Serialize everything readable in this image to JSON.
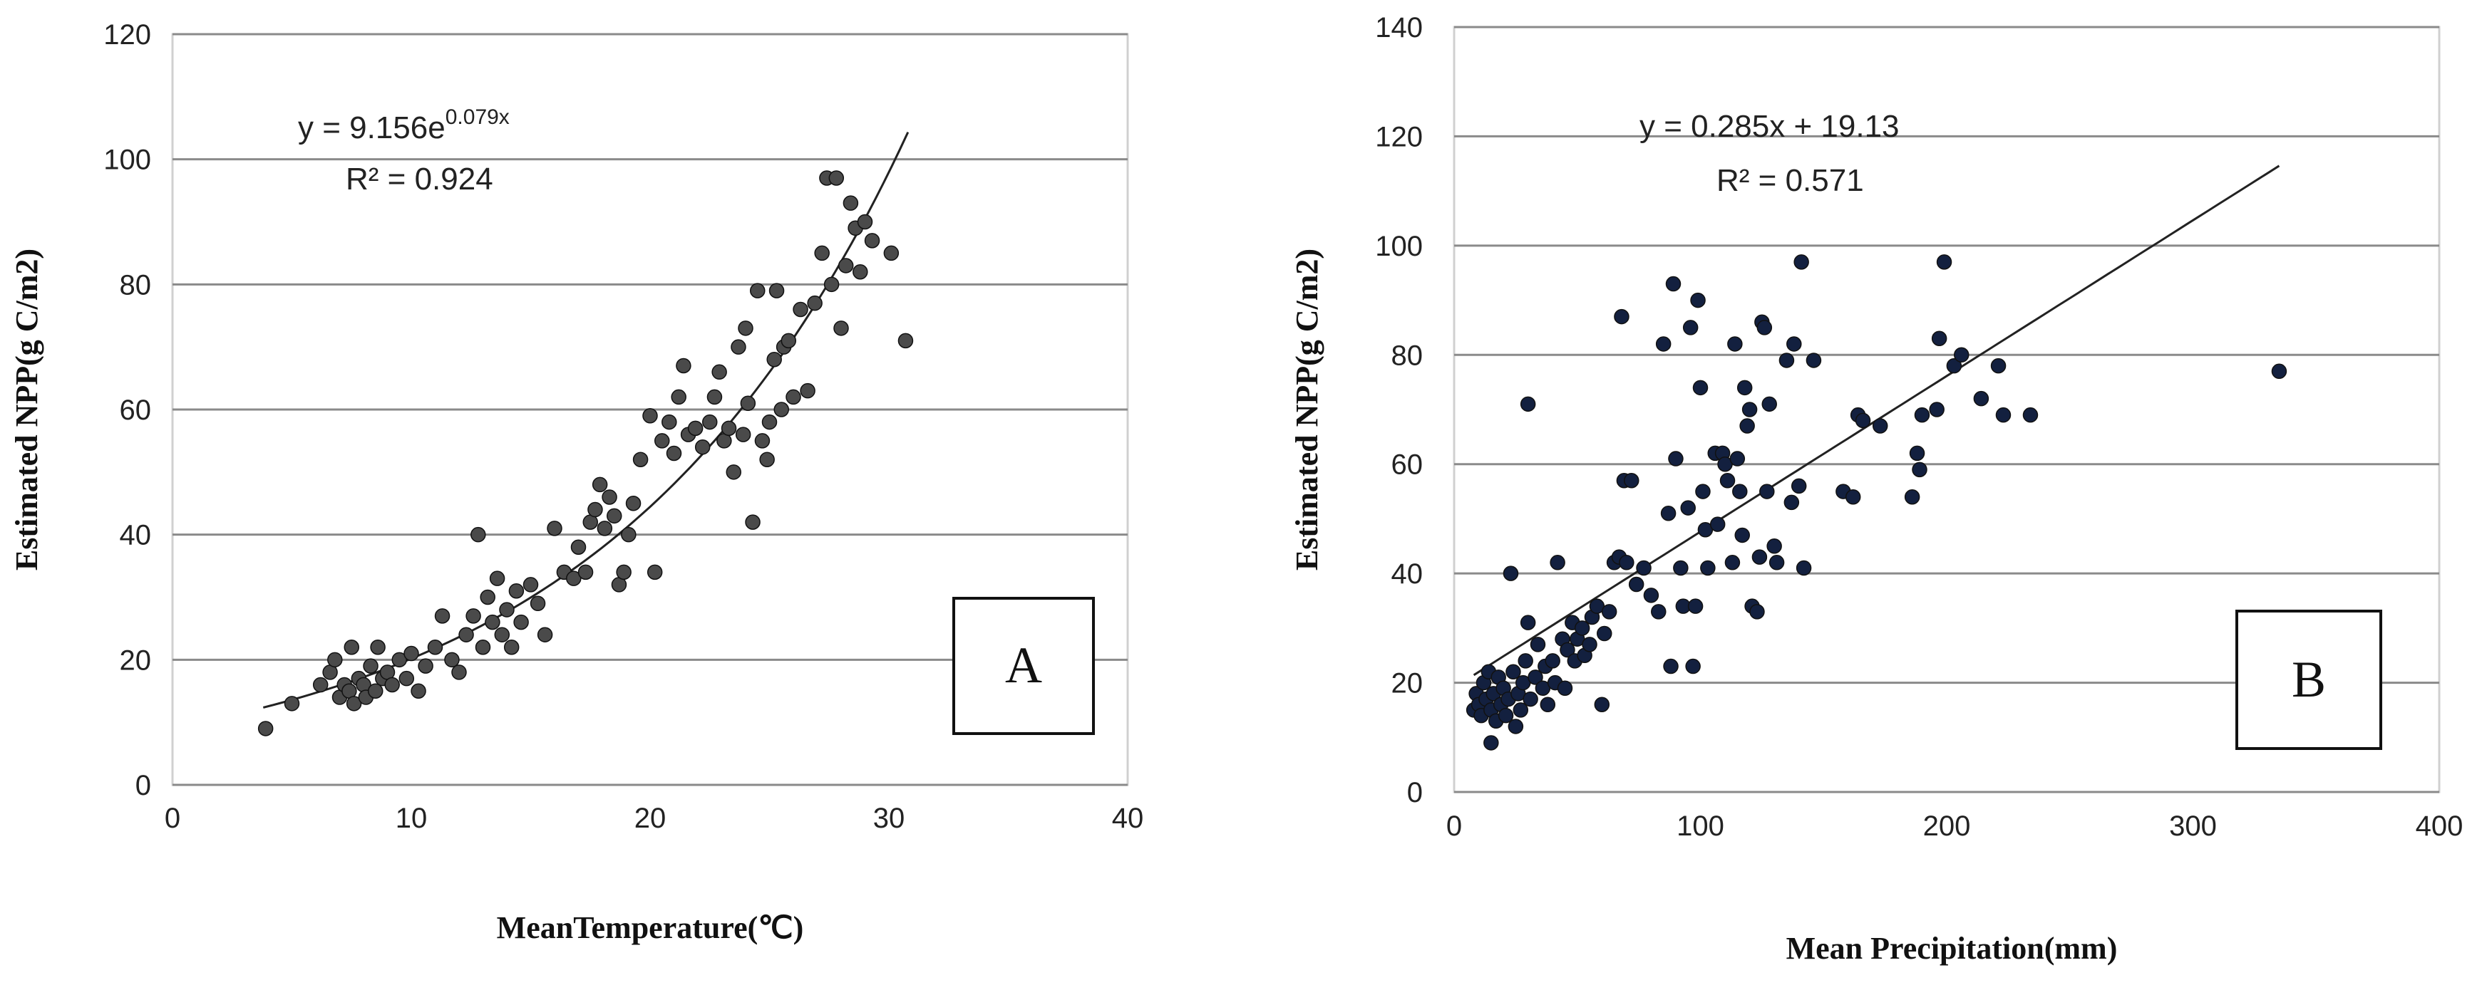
{
  "chart_data": [
    {
      "type": "scatter",
      "panel_label": "A",
      "xlabel": "MeanTemperature(℃)",
      "ylabel": "Estimated NPP(g C/m2)",
      "xlim": [
        0,
        40
      ],
      "ylim": [
        0,
        120
      ],
      "xticks": [
        0,
        10,
        20,
        30,
        40
      ],
      "yticks": [
        0,
        20,
        40,
        60,
        80,
        100,
        120
      ],
      "grid": "horizontal",
      "equation": "y = 9.156e",
      "equation_exponent": "0.079x",
      "r_squared": "R² = 0.924",
      "fit": {
        "kind": "exponential",
        "a": 9.156,
        "b": 0.079,
        "x_range": [
          3.8,
          30.8
        ]
      },
      "points": [
        [
          3.9,
          9
        ],
        [
          5,
          13
        ],
        [
          6.2,
          16
        ],
        [
          6.6,
          18
        ],
        [
          6.8,
          20
        ],
        [
          7,
          14
        ],
        [
          7.2,
          16
        ],
        [
          7.4,
          15
        ],
        [
          7.5,
          22
        ],
        [
          7.6,
          13
        ],
        [
          7.8,
          17
        ],
        [
          8,
          16
        ],
        [
          8.1,
          14
        ],
        [
          8.3,
          19
        ],
        [
          8.5,
          15
        ],
        [
          8.6,
          22
        ],
        [
          8.8,
          17
        ],
        [
          9,
          18
        ],
        [
          9.2,
          16
        ],
        [
          9.5,
          20
        ],
        [
          9.8,
          17
        ],
        [
          10,
          21
        ],
        [
          10.3,
          15
        ],
        [
          10.6,
          19
        ],
        [
          11,
          22
        ],
        [
          11.3,
          27
        ],
        [
          11.7,
          20
        ],
        [
          12,
          18
        ],
        [
          12.3,
          24
        ],
        [
          12.6,
          27
        ],
        [
          12.8,
          40
        ],
        [
          13,
          22
        ],
        [
          13.2,
          30
        ],
        [
          13.4,
          26
        ],
        [
          13.6,
          33
        ],
        [
          13.8,
          24
        ],
        [
          14,
          28
        ],
        [
          14.2,
          22
        ],
        [
          14.4,
          31
        ],
        [
          14.6,
          26
        ],
        [
          15,
          32
        ],
        [
          15.3,
          29
        ],
        [
          15.6,
          24
        ],
        [
          16,
          41
        ],
        [
          16.4,
          34
        ],
        [
          16.8,
          33
        ],
        [
          17,
          38
        ],
        [
          17.3,
          34
        ],
        [
          17.5,
          42
        ],
        [
          17.7,
          44
        ],
        [
          17.9,
          48
        ],
        [
          18.1,
          41
        ],
        [
          18.3,
          46
        ],
        [
          18.5,
          43
        ],
        [
          18.7,
          32
        ],
        [
          18.9,
          34
        ],
        [
          19.1,
          40
        ],
        [
          19.3,
          45
        ],
        [
          19.6,
          52
        ],
        [
          20,
          59
        ],
        [
          20.2,
          34
        ],
        [
          20.5,
          55
        ],
        [
          20.8,
          58
        ],
        [
          21,
          53
        ],
        [
          21.2,
          62
        ],
        [
          21.4,
          67
        ],
        [
          21.6,
          56
        ],
        [
          21.9,
          57
        ],
        [
          22.2,
          54
        ],
        [
          22.5,
          58
        ],
        [
          22.7,
          62
        ],
        [
          22.9,
          66
        ],
        [
          23.1,
          55
        ],
        [
          23.3,
          57
        ],
        [
          23.5,
          50
        ],
        [
          23.7,
          70
        ],
        [
          23.9,
          56
        ],
        [
          24,
          73
        ],
        [
          24.1,
          61
        ],
        [
          24.3,
          42
        ],
        [
          24.5,
          79
        ],
        [
          24.7,
          55
        ],
        [
          24.9,
          52
        ],
        [
          25,
          58
        ],
        [
          25.2,
          68
        ],
        [
          25.3,
          79
        ],
        [
          25.5,
          60
        ],
        [
          25.6,
          70
        ],
        [
          25.8,
          71
        ],
        [
          26,
          62
        ],
        [
          26.3,
          76
        ],
        [
          26.6,
          63
        ],
        [
          26.9,
          77
        ],
        [
          27.2,
          85
        ],
        [
          27.4,
          97
        ],
        [
          27.6,
          80
        ],
        [
          27.8,
          97
        ],
        [
          28,
          73
        ],
        [
          28.2,
          83
        ],
        [
          28.4,
          93
        ],
        [
          28.6,
          89
        ],
        [
          28.8,
          82
        ],
        [
          29,
          90
        ],
        [
          29.3,
          87
        ],
        [
          30.1,
          85
        ],
        [
          30.7,
          71
        ]
      ]
    },
    {
      "type": "scatter",
      "panel_label": "B",
      "xlabel": "Mean Precipitation(mm)",
      "ylabel": "Estimated NPP(g C/m2)",
      "xlim": [
        0,
        400
      ],
      "ylim": [
        0,
        140
      ],
      "xticks": [
        0,
        100,
        200,
        300,
        400
      ],
      "yticks": [
        0,
        20,
        40,
        60,
        80,
        100,
        120,
        140
      ],
      "grid": "horizontal",
      "equation": "y = 0.285x + 19.13",
      "r_squared": "R² = 0.571",
      "fit": {
        "kind": "linear",
        "slope": 0.285,
        "intercept": 19.13,
        "x_range": [
          8,
          335
        ]
      },
      "points": [
        [
          8,
          15
        ],
        [
          9,
          18
        ],
        [
          10,
          16
        ],
        [
          11,
          14
        ],
        [
          12,
          20
        ],
        [
          13,
          17
        ],
        [
          14,
          22
        ],
        [
          15,
          9
        ],
        [
          15,
          15
        ],
        [
          16,
          18
        ],
        [
          17,
          13
        ],
        [
          18,
          21
        ],
        [
          19,
          16
        ],
        [
          20,
          19
        ],
        [
          21,
          14
        ],
        [
          22,
          17
        ],
        [
          23,
          40
        ],
        [
          24,
          22
        ],
        [
          25,
          12
        ],
        [
          26,
          18
        ],
        [
          27,
          15
        ],
        [
          28,
          20
        ],
        [
          29,
          24
        ],
        [
          30,
          31
        ],
        [
          30,
          71
        ],
        [
          31,
          17
        ],
        [
          33,
          21
        ],
        [
          34,
          27
        ],
        [
          36,
          19
        ],
        [
          37,
          23
        ],
        [
          38,
          16
        ],
        [
          40,
          24
        ],
        [
          41,
          20
        ],
        [
          42,
          42
        ],
        [
          44,
          28
        ],
        [
          45,
          19
        ],
        [
          46,
          26
        ],
        [
          48,
          31
        ],
        [
          49,
          24
        ],
        [
          50,
          28
        ],
        [
          52,
          30
        ],
        [
          53,
          25
        ],
        [
          55,
          27
        ],
        [
          56,
          32
        ],
        [
          58,
          34
        ],
        [
          60,
          16
        ],
        [
          61,
          29
        ],
        [
          63,
          33
        ],
        [
          65,
          42
        ],
        [
          67,
          43
        ],
        [
          68,
          87
        ],
        [
          69,
          57
        ],
        [
          70,
          42
        ],
        [
          72,
          57
        ],
        [
          74,
          38
        ],
        [
          77,
          41
        ],
        [
          80,
          36
        ],
        [
          83,
          33
        ],
        [
          85,
          82
        ],
        [
          87,
          51
        ],
        [
          88,
          23
        ],
        [
          89,
          93
        ],
        [
          90,
          61
        ],
        [
          92,
          41
        ],
        [
          93,
          34
        ],
        [
          95,
          52
        ],
        [
          96,
          85
        ],
        [
          97,
          23
        ],
        [
          98,
          34
        ],
        [
          99,
          90
        ],
        [
          100,
          74
        ],
        [
          101,
          55
        ],
        [
          102,
          48
        ],
        [
          103,
          41
        ],
        [
          106,
          62
        ],
        [
          107,
          49
        ],
        [
          109,
          62
        ],
        [
          110,
          60
        ],
        [
          111,
          57
        ],
        [
          113,
          42
        ],
        [
          114,
          82
        ],
        [
          115,
          61
        ],
        [
          116,
          55
        ],
        [
          117,
          47
        ],
        [
          118,
          74
        ],
        [
          119,
          67
        ],
        [
          120,
          70
        ],
        [
          121,
          34
        ],
        [
          123,
          33
        ],
        [
          124,
          43
        ],
        [
          125,
          86
        ],
        [
          126,
          85
        ],
        [
          127,
          55
        ],
        [
          128,
          71
        ],
        [
          130,
          45
        ],
        [
          131,
          42
        ],
        [
          135,
          79
        ],
        [
          137,
          53
        ],
        [
          138,
          82
        ],
        [
          140,
          56
        ],
        [
          141,
          97
        ],
        [
          142,
          41
        ],
        [
          146,
          79
        ],
        [
          158,
          55
        ],
        [
          162,
          54
        ],
        [
          164,
          69
        ],
        [
          166,
          68
        ],
        [
          173,
          67
        ],
        [
          186,
          54
        ],
        [
          188,
          62
        ],
        [
          189,
          59
        ],
        [
          190,
          69
        ],
        [
          196,
          70
        ],
        [
          197,
          83
        ],
        [
          199,
          97
        ],
        [
          203,
          78
        ],
        [
          206,
          80
        ],
        [
          214,
          72
        ],
        [
          221,
          78
        ],
        [
          223,
          69
        ],
        [
          234,
          69
        ],
        [
          335,
          77
        ]
      ]
    }
  ]
}
